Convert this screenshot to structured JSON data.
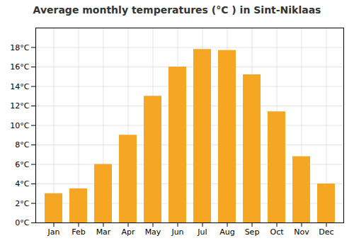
{
  "chart_data": {
    "type": "bar",
    "title": "Average monthly temperatures (°C ) in Sint-Niklaas",
    "categories": [
      "Jan",
      "Feb",
      "Mar",
      "Apr",
      "May",
      "Jun",
      "Jul",
      "Aug",
      "Sep",
      "Oct",
      "Nov",
      "Dec"
    ],
    "values": [
      3.0,
      3.5,
      6.0,
      9.0,
      13.0,
      16.0,
      17.8,
      17.7,
      15.2,
      11.4,
      6.8,
      4.0
    ],
    "color": "#F5A623",
    "ylim": [
      0,
      20
    ],
    "yticks": [
      {
        "value": 0,
        "label": "0°C"
      },
      {
        "value": 2,
        "label": "2°C"
      },
      {
        "value": 4,
        "label": "4°C"
      },
      {
        "value": 6,
        "label": "6°C"
      },
      {
        "value": 8,
        "label": "8°C"
      },
      {
        "value": 10,
        "label": "10°C"
      },
      {
        "value": 12,
        "label": "12°C"
      },
      {
        "value": 14,
        "label": "14°C"
      },
      {
        "value": 16,
        "label": "16°C"
      },
      {
        "value": 18,
        "label": "18°C"
      }
    ],
    "grid": true
  }
}
